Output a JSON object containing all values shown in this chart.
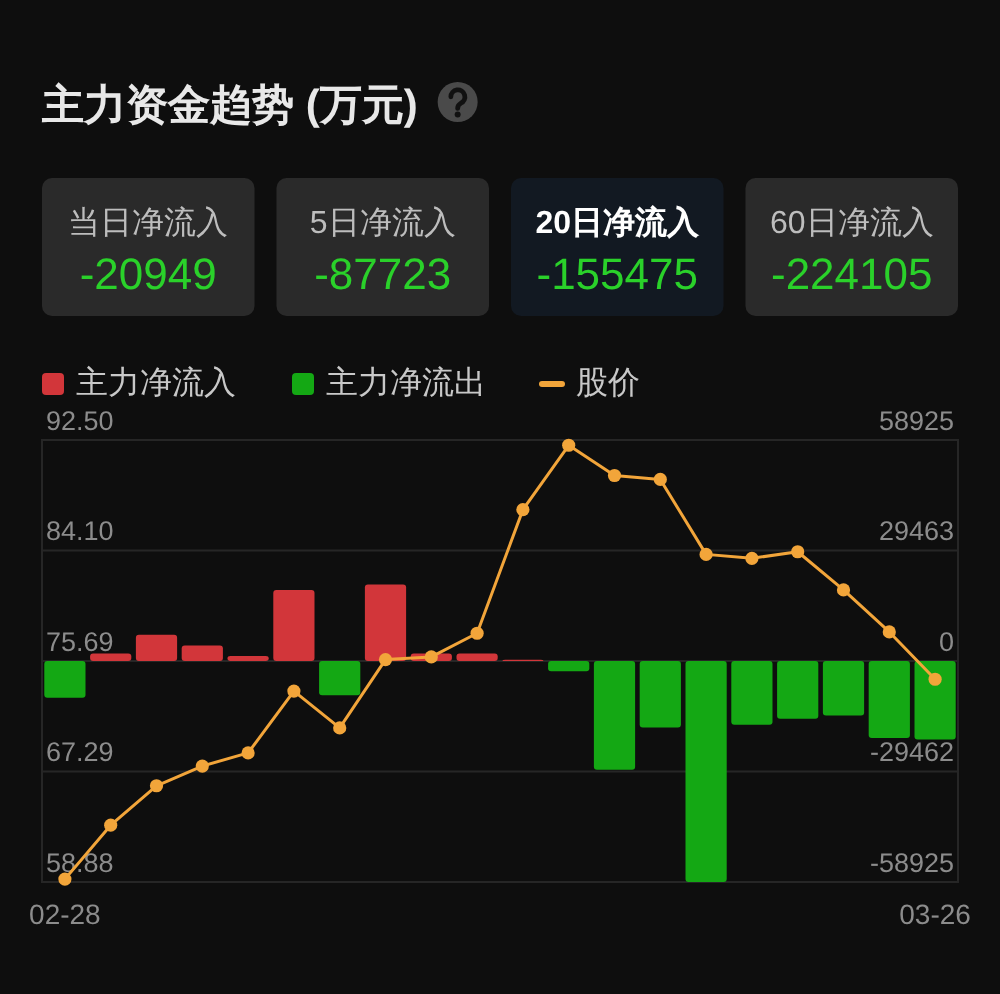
{
  "chart_data": [
    {
      "type": "other",
      "title": "主力资金趋势 (万元)",
      "categories": [
        "当日净流入",
        "5日净流入",
        "20日净流入",
        "60日净流入"
      ],
      "values": [
        -20949,
        -87723,
        -155475,
        -224105
      ],
      "colors": [
        "#2a2a2a",
        "#2a2a2a",
        "#121922",
        "#2a2a2a"
      ],
      "data_labels": true
    },
    {
      "type": "bar",
      "categories": [
        "02-28",
        null,
        null,
        null,
        null,
        null,
        null,
        null,
        null,
        null,
        null,
        null,
        null,
        null,
        null,
        null,
        null,
        null,
        null,
        "03-26"
      ],
      "series": [
        {
          "name": "主力净流入",
          "color": "#d2363a",
          "axis": "y2",
          "values": [
            null,
            2000,
            7000,
            4100,
            1300,
            18900,
            null,
            20400,
            2000,
            2000,
            300,
            null,
            null,
            null,
            null,
            null,
            null,
            null,
            null,
            null
          ]
        },
        {
          "name": "主力净流出",
          "color": "#14a814",
          "axis": "y2",
          "values": [
            -9800,
            null,
            null,
            null,
            null,
            null,
            -9100,
            null,
            null,
            null,
            null,
            -2700,
            -29000,
            -17700,
            -58900,
            -17000,
            -15400,
            -14500,
            -20500,
            -20900
          ]
        },
        {
          "name": "股价",
          "type": "line",
          "color": "#f2a53a",
          "values": [
            59.1,
            63.2,
            66.2,
            67.7,
            68.7,
            73.4,
            70.6,
            75.8,
            76.0,
            77.8,
            87.2,
            92.1,
            89.8,
            89.5,
            83.8,
            83.5,
            84.0,
            81.1,
            77.9,
            74.3
          ]
        }
      ],
      "stacked": true,
      "ylim": [
        58.88,
        92.5
      ],
      "yticks": [
        58.88,
        67.29,
        75.69,
        {
          "value": 84.1,
          "label": "84.10"
        },
        {
          "value": 92.5,
          "label": "92.50"
        }
      ],
      "y2lim": [
        -58925,
        58925
      ],
      "y2ticks": [
        -58925,
        -29462,
        0,
        29463,
        58925
      ],
      "grid": "y",
      "legend": "top left",
      "marker": "circle"
    }
  ]
}
